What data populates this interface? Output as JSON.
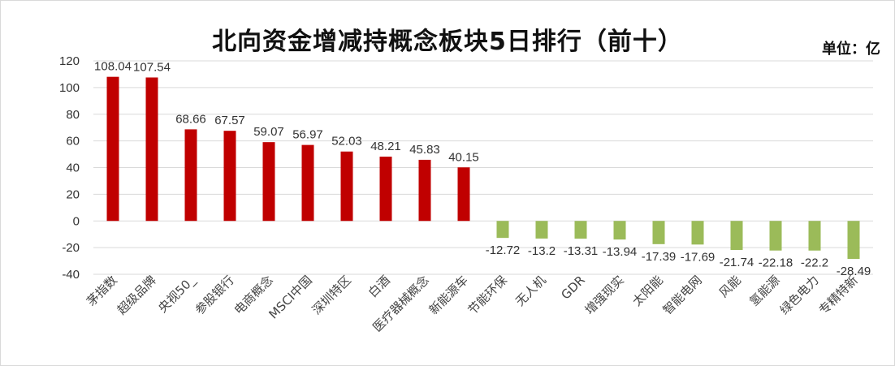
{
  "title": "北向资金增减持概念板块5日排行（前十）",
  "unit": "单位：亿",
  "colors": {
    "positive": "#c00000",
    "negative": "#9bbb59",
    "grid": "#d9d9d9"
  },
  "chart_data": {
    "type": "bar",
    "title": "北向资金增减持概念板块5日排行（前十）",
    "xlabel": "",
    "ylabel": "",
    "ylim": [
      -40,
      120
    ],
    "yticks": [
      -40,
      -20,
      0,
      20,
      40,
      60,
      80,
      100,
      120
    ],
    "grid": true,
    "categories": [
      "茅指数",
      "超级品牌",
      "央视50_",
      "参股银行",
      "电商概念",
      "MSCI中国",
      "深圳特区",
      "白酒",
      "医疗器械概念",
      "新能源车",
      "节能环保",
      "无人机",
      "GDR",
      "增强现实",
      "太阳能",
      "智能电网",
      "风能",
      "氢能源",
      "绿色电力",
      "专精特新"
    ],
    "values": [
      108.04,
      107.54,
      68.66,
      67.57,
      59.07,
      56.97,
      52.03,
      48.21,
      45.83,
      40.15,
      -12.72,
      -13.2,
      -13.31,
      -13.94,
      -17.39,
      -17.69,
      -21.74,
      -22.18,
      -22.2,
      -28.49
    ],
    "value_labels": [
      "108.04",
      "107.54",
      "68.66",
      "67.57",
      "59.07",
      "56.97",
      "52.03",
      "48.21",
      "45.83",
      "40.15",
      "-12.72",
      "-13.2",
      "-13.31",
      "-13.94",
      "-17.39",
      "-17.69",
      "-21.74",
      "-22.18",
      "-22.2",
      "-28.49"
    ]
  }
}
